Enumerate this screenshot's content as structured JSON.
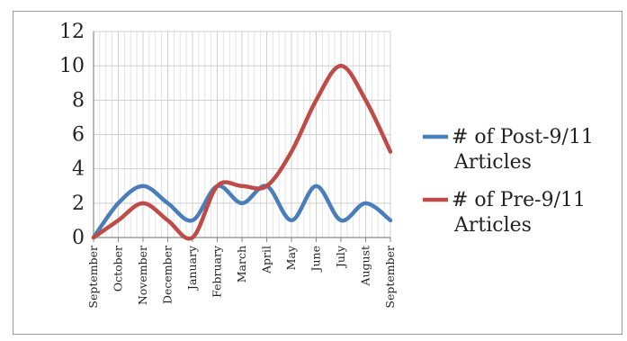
{
  "chart_data": {
    "type": "line",
    "title": "",
    "xlabel": "",
    "ylabel": "",
    "ylim": [
      0,
      12
    ],
    "yticks": [
      "0",
      "2",
      "4",
      "6",
      "8",
      "10",
      "12"
    ],
    "grid": true,
    "legend_placement": "right",
    "categories": [
      "September",
      "October",
      "November",
      "December",
      "January",
      "February",
      "March",
      "April",
      "May",
      "June",
      "July",
      "August",
      "September"
    ],
    "series": [
      {
        "name": "# of Post-9/11 Articles",
        "color": "#4A7EBB",
        "values": [
          0,
          2,
          3,
          2,
          1,
          3,
          2,
          3,
          1,
          3,
          1,
          2,
          1
        ]
      },
      {
        "name": "# of Pre-9/11 Articles",
        "color": "#BE4B48",
        "values": [
          0,
          1,
          2,
          1,
          0,
          3,
          3,
          3,
          5,
          8,
          10,
          8,
          5
        ]
      }
    ]
  }
}
